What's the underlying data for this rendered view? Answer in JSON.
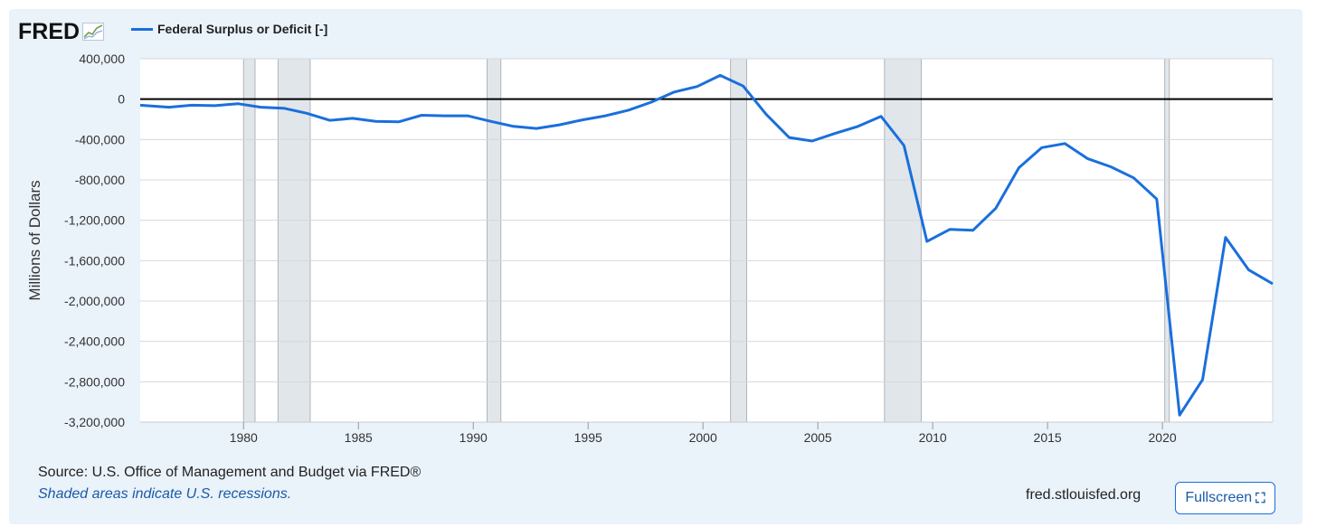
{
  "logo": {
    "text": "FRED"
  },
  "legend": {
    "label": "Federal Surplus or Deficit [-]",
    "color": "#1a6fdc"
  },
  "footer": {
    "source": "Source: U.S. Office of Management and Budget via FRED®",
    "note": "Shaded areas indicate U.S. recessions.",
    "site": "fred.stlouisfed.org",
    "fullscreen_label": "Fullscreen",
    "fullscreen_icon": "fullscreen-icon"
  },
  "chart_data": {
    "type": "line",
    "title": "",
    "xlabel": "",
    "ylabel": "Millions of Dollars",
    "xlim": [
      1975.5,
      2024.8
    ],
    "ylim": [
      -3200000,
      400000
    ],
    "y_ticks": [
      400000,
      0,
      -400000,
      -800000,
      -1200000,
      -1600000,
      -2000000,
      -2400000,
      -2800000,
      -3200000
    ],
    "y_tick_labels": [
      "400,000",
      "0",
      "-400,000",
      "-800,000",
      "-1,200,000",
      "-1,600,000",
      "-2,000,000",
      "-2,400,000",
      "-2,800,000",
      "-3,200,000"
    ],
    "x_ticks": [
      1980,
      1985,
      1990,
      1995,
      2000,
      2005,
      2010,
      2015,
      2020
    ],
    "x_tick_labels": [
      "1980",
      "1985",
      "1990",
      "1995",
      "2000",
      "2005",
      "2010",
      "2015",
      "2020"
    ],
    "grid": true,
    "recessions": [
      [
        1980.0,
        1980.5
      ],
      [
        1981.5,
        1982.9
      ],
      [
        1990.6,
        1991.2
      ],
      [
        2001.2,
        2001.9
      ],
      [
        2007.9,
        2009.5
      ],
      [
        2020.1,
        2020.3
      ]
    ],
    "series": [
      {
        "name": "Federal Surplus or Deficit [-]",
        "color": "#1a6fdc",
        "x": [
          1975.5,
          1976.75,
          1977.75,
          1978.75,
          1979.75,
          1980.75,
          1981.75,
          1982.75,
          1983.75,
          1984.75,
          1985.75,
          1986.75,
          1987.75,
          1988.75,
          1989.75,
          1990.75,
          1991.75,
          1992.75,
          1993.75,
          1994.75,
          1995.75,
          1996.75,
          1997.75,
          1998.75,
          1999.75,
          2000.75,
          2001.75,
          2002.75,
          2003.75,
          2004.75,
          2005.75,
          2006.75,
          2007.75,
          2008.75,
          2009.75,
          2010.75,
          2011.75,
          2012.75,
          2013.75,
          2014.75,
          2015.75,
          2016.75,
          2017.75,
          2018.75,
          2019.75,
          2020.75,
          2021.75,
          2022.75,
          2023.75,
          2024.8
        ],
        "values": [
          -60000,
          -80000,
          -60000,
          -65000,
          -45000,
          -80000,
          -90000,
          -140000,
          -210000,
          -190000,
          -220000,
          -225000,
          -160000,
          -165000,
          -165000,
          -220000,
          -270000,
          -290000,
          -255000,
          -205000,
          -165000,
          -110000,
          -30000,
          70000,
          125000,
          235000,
          130000,
          -150000,
          -380000,
          -415000,
          -340000,
          -270000,
          -170000,
          -460000,
          -1410000,
          -1290000,
          -1300000,
          -1080000,
          -680000,
          -480000,
          -440000,
          -590000,
          -670000,
          -780000,
          -990000,
          -3130000,
          -2780000,
          -1370000,
          -1690000,
          -1830000
        ]
      }
    ]
  }
}
